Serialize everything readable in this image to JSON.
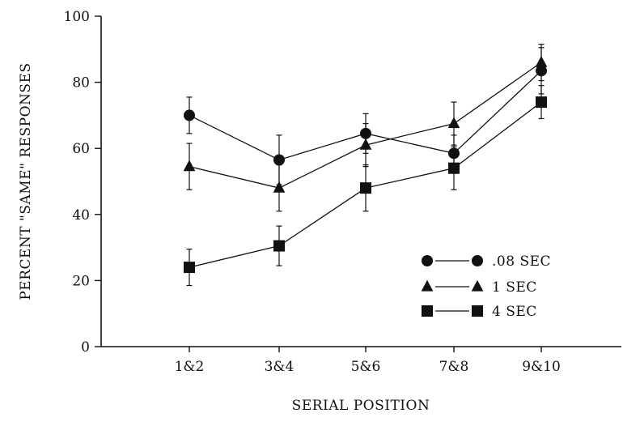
{
  "chart_data": {
    "type": "line",
    "xlabel": "SERIAL POSITION",
    "ylabel": "PERCENT \"SAME\" RESPONSES",
    "categories": [
      "1&2",
      "3&4",
      "5&6",
      "7&8",
      "9&10"
    ],
    "ylim": [
      0,
      100
    ],
    "yticks": [
      0,
      20,
      40,
      60,
      80,
      100
    ],
    "grid": false,
    "legend_position": "bottom-right",
    "series": [
      {
        "name": ".08 SEC",
        "marker": "circle",
        "values": [
          70,
          56.5,
          64.5,
          58.5,
          83.5
        ],
        "error": [
          5.5,
          7.5,
          6,
          5.5,
          7
        ]
      },
      {
        "name": "1 SEC",
        "marker": "triangle",
        "values": [
          54.5,
          48,
          61,
          67.5,
          86
        ],
        "error": [
          7,
          7,
          6.5,
          6.5,
          5.5
        ]
      },
      {
        "name": "4 SEC",
        "marker": "square",
        "values": [
          24,
          30.5,
          48,
          54,
          74
        ],
        "error": [
          5.5,
          6,
          7,
          6.5,
          5
        ]
      }
    ],
    "colors": {
      "ink": "#111111",
      "background": "#ffffff"
    }
  }
}
